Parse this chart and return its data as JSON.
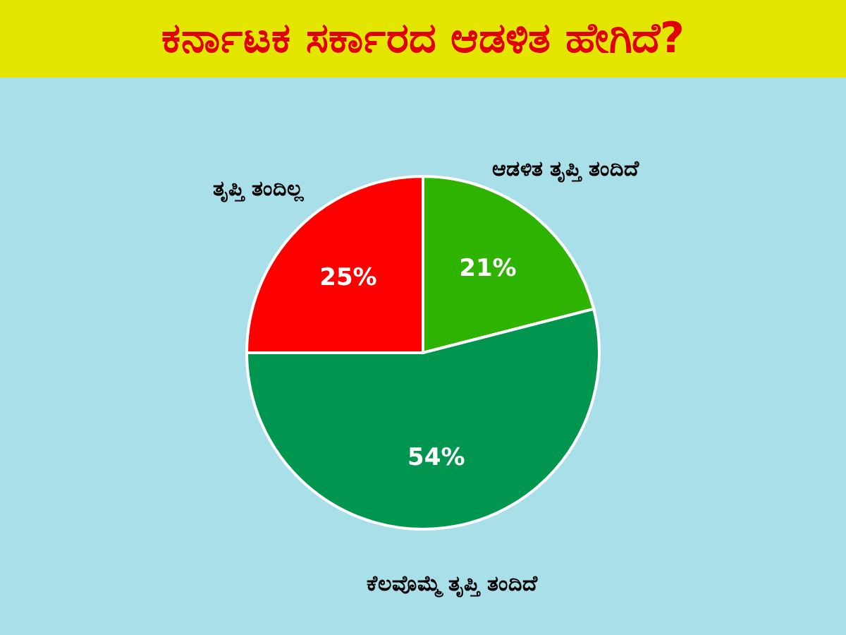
{
  "chart_data": {
    "type": "pie",
    "title": "ಕರ್ನಾಟಕ ಸರ್ಕಾರದ ಆಡಳಿತ ಹೇಗಿದೆ?",
    "categories": [
      "ಆಡಳಿತ ತೃಪ್ತಿ ತಂದಿದೆ",
      "ಕೆಲವೊಮ್ಮೆ ತೃಪ್ತಿ ತಂದಿದೆ",
      "ತೃಪ್ತಿ ತಂದಿಲ್ಲ"
    ],
    "values": [
      21,
      54,
      25
    ],
    "value_labels": [
      "21%",
      "54%",
      "25%"
    ],
    "colors": [
      "#2db300",
      "#00964f",
      "#ff0000"
    ]
  }
}
